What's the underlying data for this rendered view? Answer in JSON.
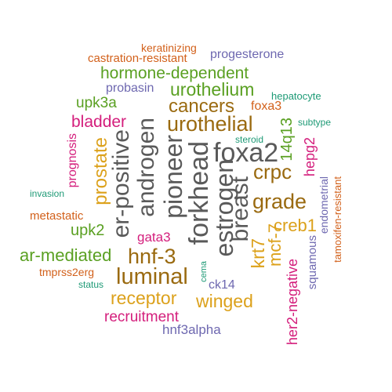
{
  "colors": {
    "gray": "#5a5a5a",
    "brown": "#9a6a10",
    "gold": "#dca11b",
    "green": "#5aa022",
    "orange": "#d2601a",
    "purple": "#6e68b0",
    "magenta": "#d41e7c",
    "teal": "#1e9a76"
  },
  "words": {
    "keratinizing": "keratinizing",
    "castration_resistant": "castration-resistant",
    "progesterone": "progesterone",
    "hormone_dependent": "hormone-dependent",
    "probasin": "probasin",
    "urothelium": "urothelium",
    "hepatocyte": "hepatocyte",
    "upk3a": "upk3a",
    "cancers": "cancers",
    "foxa3": "foxa3",
    "bladder": "bladder",
    "urothelial": "urothelial",
    "steroid": "steroid",
    "subtype": "subtype",
    "prognosis": "prognosis",
    "prostate": "prostate",
    "er_positive": "er-positive",
    "androgen": "androgen",
    "pioneer": "pioneer",
    "forkhead": "forkhead",
    "estrogen": "estrogen",
    "foxa2": "foxa2",
    "breast": "breast",
    "crpc": "crpc",
    "14q13": "14q13",
    "hepg2": "hepg2",
    "invasion": "invasion",
    "grade": "grade",
    "endometrial": "endometrial",
    "tamoxifen_resistant": "tamoxifen-resistant",
    "metastatic": "metastatic",
    "upk2": "upk2",
    "creb1": "creb1",
    "gata3": "gata3",
    "krt7": "krt7",
    "mcf_7": "mcf-7",
    "ar_mediated": "ar-mediated",
    "hnf_3": "hnf-3",
    "squamous": "squamous",
    "tmprss2erg": "tmprss2erg",
    "luminal": "luminal",
    "cema": "cema",
    "her2_negative": "her2-negative",
    "status": "status",
    "ck14": "ck14",
    "receptor": "receptor",
    "winged": "winged",
    "recruitment": "recruitment",
    "hnf3alpha": "hnf3alpha"
  }
}
